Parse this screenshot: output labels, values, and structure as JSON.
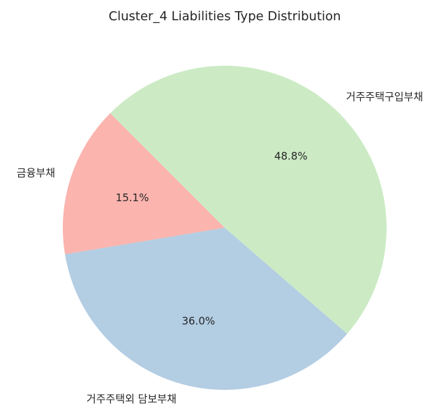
{
  "chart_data": {
    "type": "pie",
    "title": "Cluster_4 Liabilities Type Distribution",
    "categories": [
      "금융부채",
      "거주주택외 담보부채",
      "거주주택구입부채"
    ],
    "values": [
      15.1,
      36.0,
      48.8
    ],
    "labels": [
      "15.1%",
      "36.0%",
      "48.8%"
    ],
    "colors": [
      "#fbb4ae",
      "#b3cde3",
      "#ccebc5"
    ],
    "counterclock": true,
    "legend": "none"
  }
}
